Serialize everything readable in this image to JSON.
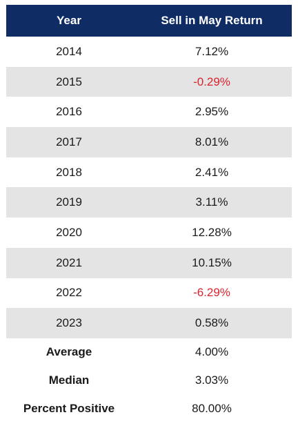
{
  "table": {
    "headers": [
      "Year",
      "Sell in May Return"
    ],
    "rows": [
      {
        "year": "2014",
        "return": "7.12%",
        "negative": false
      },
      {
        "year": "2015",
        "return": "-0.29%",
        "negative": true
      },
      {
        "year": "2016",
        "return": "2.95%",
        "negative": false
      },
      {
        "year": "2017",
        "return": "8.01%",
        "negative": false
      },
      {
        "year": "2018",
        "return": "2.41%",
        "negative": false
      },
      {
        "year": "2019",
        "return": "3.11%",
        "negative": false
      },
      {
        "year": "2020",
        "return": "12.28%",
        "negative": false
      },
      {
        "year": "2021",
        "return": "10.15%",
        "negative": false
      },
      {
        "year": "2022",
        "return": "-6.29%",
        "negative": true
      },
      {
        "year": "2023",
        "return": "0.58%",
        "negative": false
      }
    ],
    "summary": [
      {
        "label": "Average",
        "value": "4.00%"
      },
      {
        "label": "Median",
        "value": "3.03%"
      },
      {
        "label": "Percent Positive",
        "value": "80.00%"
      }
    ]
  },
  "colors": {
    "header_bg": "#0f2d64",
    "header_text": "#ffffff",
    "stripe": "#e4e4e4",
    "negative": "#d9232e"
  }
}
